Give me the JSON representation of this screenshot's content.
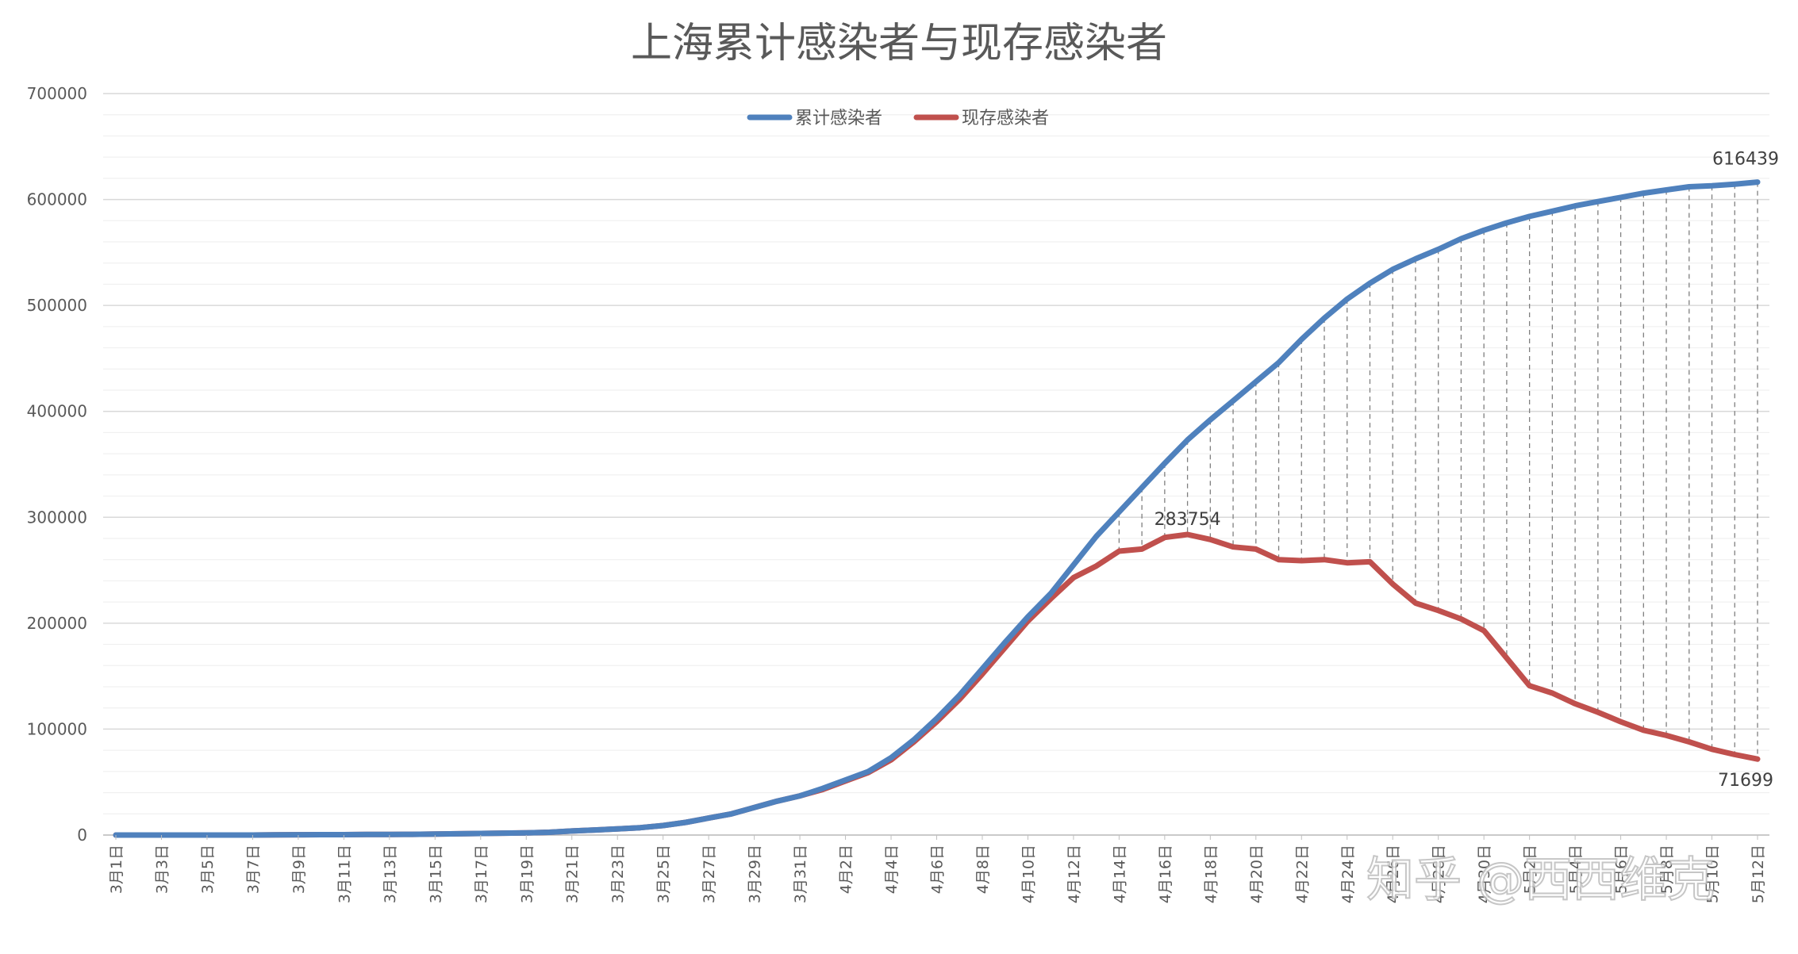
{
  "chart_data": {
    "type": "line",
    "title": "上海累计感染者与现存感染者",
    "xlabel": "",
    "ylabel": "",
    "ylim": [
      0,
      700000
    ],
    "yticks": [
      0,
      100000,
      200000,
      300000,
      400000,
      500000,
      600000,
      700000
    ],
    "grid": true,
    "legend_position": "top-center",
    "categories": [
      "3月1日",
      "3月2日",
      "3月3日",
      "3月4日",
      "3月5日",
      "3月6日",
      "3月7日",
      "3月8日",
      "3月9日",
      "3月10日",
      "3月11日",
      "3月12日",
      "3月13日",
      "3月14日",
      "3月15日",
      "3月16日",
      "3月17日",
      "3月18日",
      "3月19日",
      "3月20日",
      "3月21日",
      "3月22日",
      "3月23日",
      "3月24日",
      "3月25日",
      "3月26日",
      "3月27日",
      "3月28日",
      "3月29日",
      "3月30日",
      "3月31日",
      "4月1日",
      "4月2日",
      "4月3日",
      "4月4日",
      "4月5日",
      "4月6日",
      "4月7日",
      "4月8日",
      "4月9日",
      "4月10日",
      "4月11日",
      "4月12日",
      "4月13日",
      "4月14日",
      "4月15日",
      "4月16日",
      "4月17日",
      "4月18日",
      "4月19日",
      "4月20日",
      "4月21日",
      "4月22日",
      "4月23日",
      "4月24日",
      "4月25日",
      "4月26日",
      "4月27日",
      "4月28日",
      "4月29日",
      "4月30日",
      "5月1日",
      "5月2日",
      "5月3日",
      "5月4日",
      "5月5日",
      "5月6日",
      "5月7日",
      "5月8日",
      "5月9日",
      "5月10日",
      "5月11日",
      "5月12日"
    ],
    "series": [
      {
        "name": "累计感染者",
        "color": "#4f81bd",
        "values": [
          0,
          0,
          0,
          0,
          0,
          0,
          0,
          200,
          300,
          400,
          400,
          500,
          600,
          700,
          1000,
          1200,
          1500,
          1800,
          2100,
          2600,
          3800,
          4800,
          5800,
          7000,
          9000,
          12000,
          16000,
          20000,
          26000,
          32000,
          37000,
          44000,
          52000,
          60000,
          73000,
          90000,
          110000,
          132000,
          157000,
          182000,
          206000,
          228000,
          255000,
          282000,
          305000,
          328000,
          351000,
          373000,
          392000,
          410000,
          428000,
          446000,
          468000,
          488000,
          506000,
          521000,
          534000,
          544000,
          553000,
          563000,
          571000,
          578000,
          584000,
          589000,
          594000,
          598000,
          602000,
          606000,
          609000,
          612000,
          613000,
          614500,
          616439
        ]
      },
      {
        "name": "现存感染者",
        "color": "#c0504d",
        "values": [
          0,
          0,
          0,
          0,
          0,
          0,
          0,
          200,
          300,
          400,
          400,
          500,
          600,
          700,
          1000,
          1200,
          1500,
          1800,
          2100,
          2600,
          3800,
          4800,
          5800,
          7000,
          9000,
          12000,
          16000,
          20000,
          26000,
          32000,
          37000,
          43000,
          51000,
          59000,
          71000,
          88000,
          107000,
          128000,
          152000,
          177000,
          202000,
          223000,
          243000,
          254000,
          268000,
          270000,
          281000,
          283754,
          279000,
          272000,
          270000,
          260000,
          259000,
          260000,
          257000,
          258000,
          237000,
          219000,
          212000,
          204000,
          193000,
          167000,
          141000,
          134000,
          124000,
          116000,
          107000,
          99000,
          94000,
          88000,
          81000,
          76000,
          71699
        ]
      }
    ],
    "annotations": [
      {
        "series": 0,
        "index": 72,
        "text": "616439"
      },
      {
        "series": 1,
        "index": 47,
        "text": "283754"
      },
      {
        "series": 1,
        "index": 72,
        "text": "71699"
      }
    ],
    "drop_lines_start_index": 44
  },
  "watermark": "知乎 @西西维克"
}
